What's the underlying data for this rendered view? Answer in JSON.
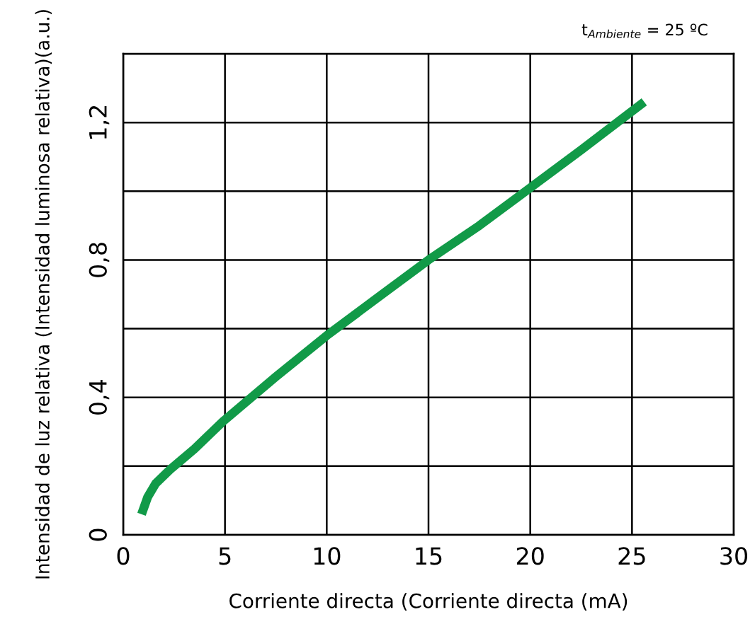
{
  "chart_data": {
    "type": "line",
    "subtitle": "t$_{Ambiente}$ = 25 ºC",
    "xlabel": "Corriente directa (Corriente directa (mA)",
    "ylabel": "Intensidad de luz relativa (Intensidad luminosa relativa)(a.u.)",
    "x": [
      0.9,
      1.2,
      1.6,
      2.3,
      3.5,
      4.9,
      7.5,
      10,
      12.5,
      15,
      17.5,
      20,
      22.5,
      25.6
    ],
    "series": [
      {
        "color": "#119a48",
        "values": [
          0.06,
          0.11,
          0.15,
          0.19,
          0.25,
          0.33,
          0.46,
          0.58,
          0.69,
          0.8,
          0.9,
          1.01,
          1.12,
          1.26
        ]
      }
    ],
    "xlim": [
      0,
      30
    ],
    "xticks": [
      0,
      5,
      10,
      15,
      20,
      25,
      30
    ],
    "ylim": [
      0,
      1.4
    ],
    "yticks": [
      0,
      {
        "value": 0.2,
        "label": null
      },
      {
        "value": 0.4,
        "label": "0,4"
      },
      {
        "value": 0.6,
        "label": null
      },
      {
        "value": 0.8,
        "label": "0,8"
      },
      {
        "value": 1.0,
        "label": null
      },
      {
        "value": 1.2,
        "label": "1,2"
      },
      {
        "value": 1.4,
        "label": null
      }
    ],
    "grid": true,
    "marker": "none",
    "line_style": "solid"
  }
}
